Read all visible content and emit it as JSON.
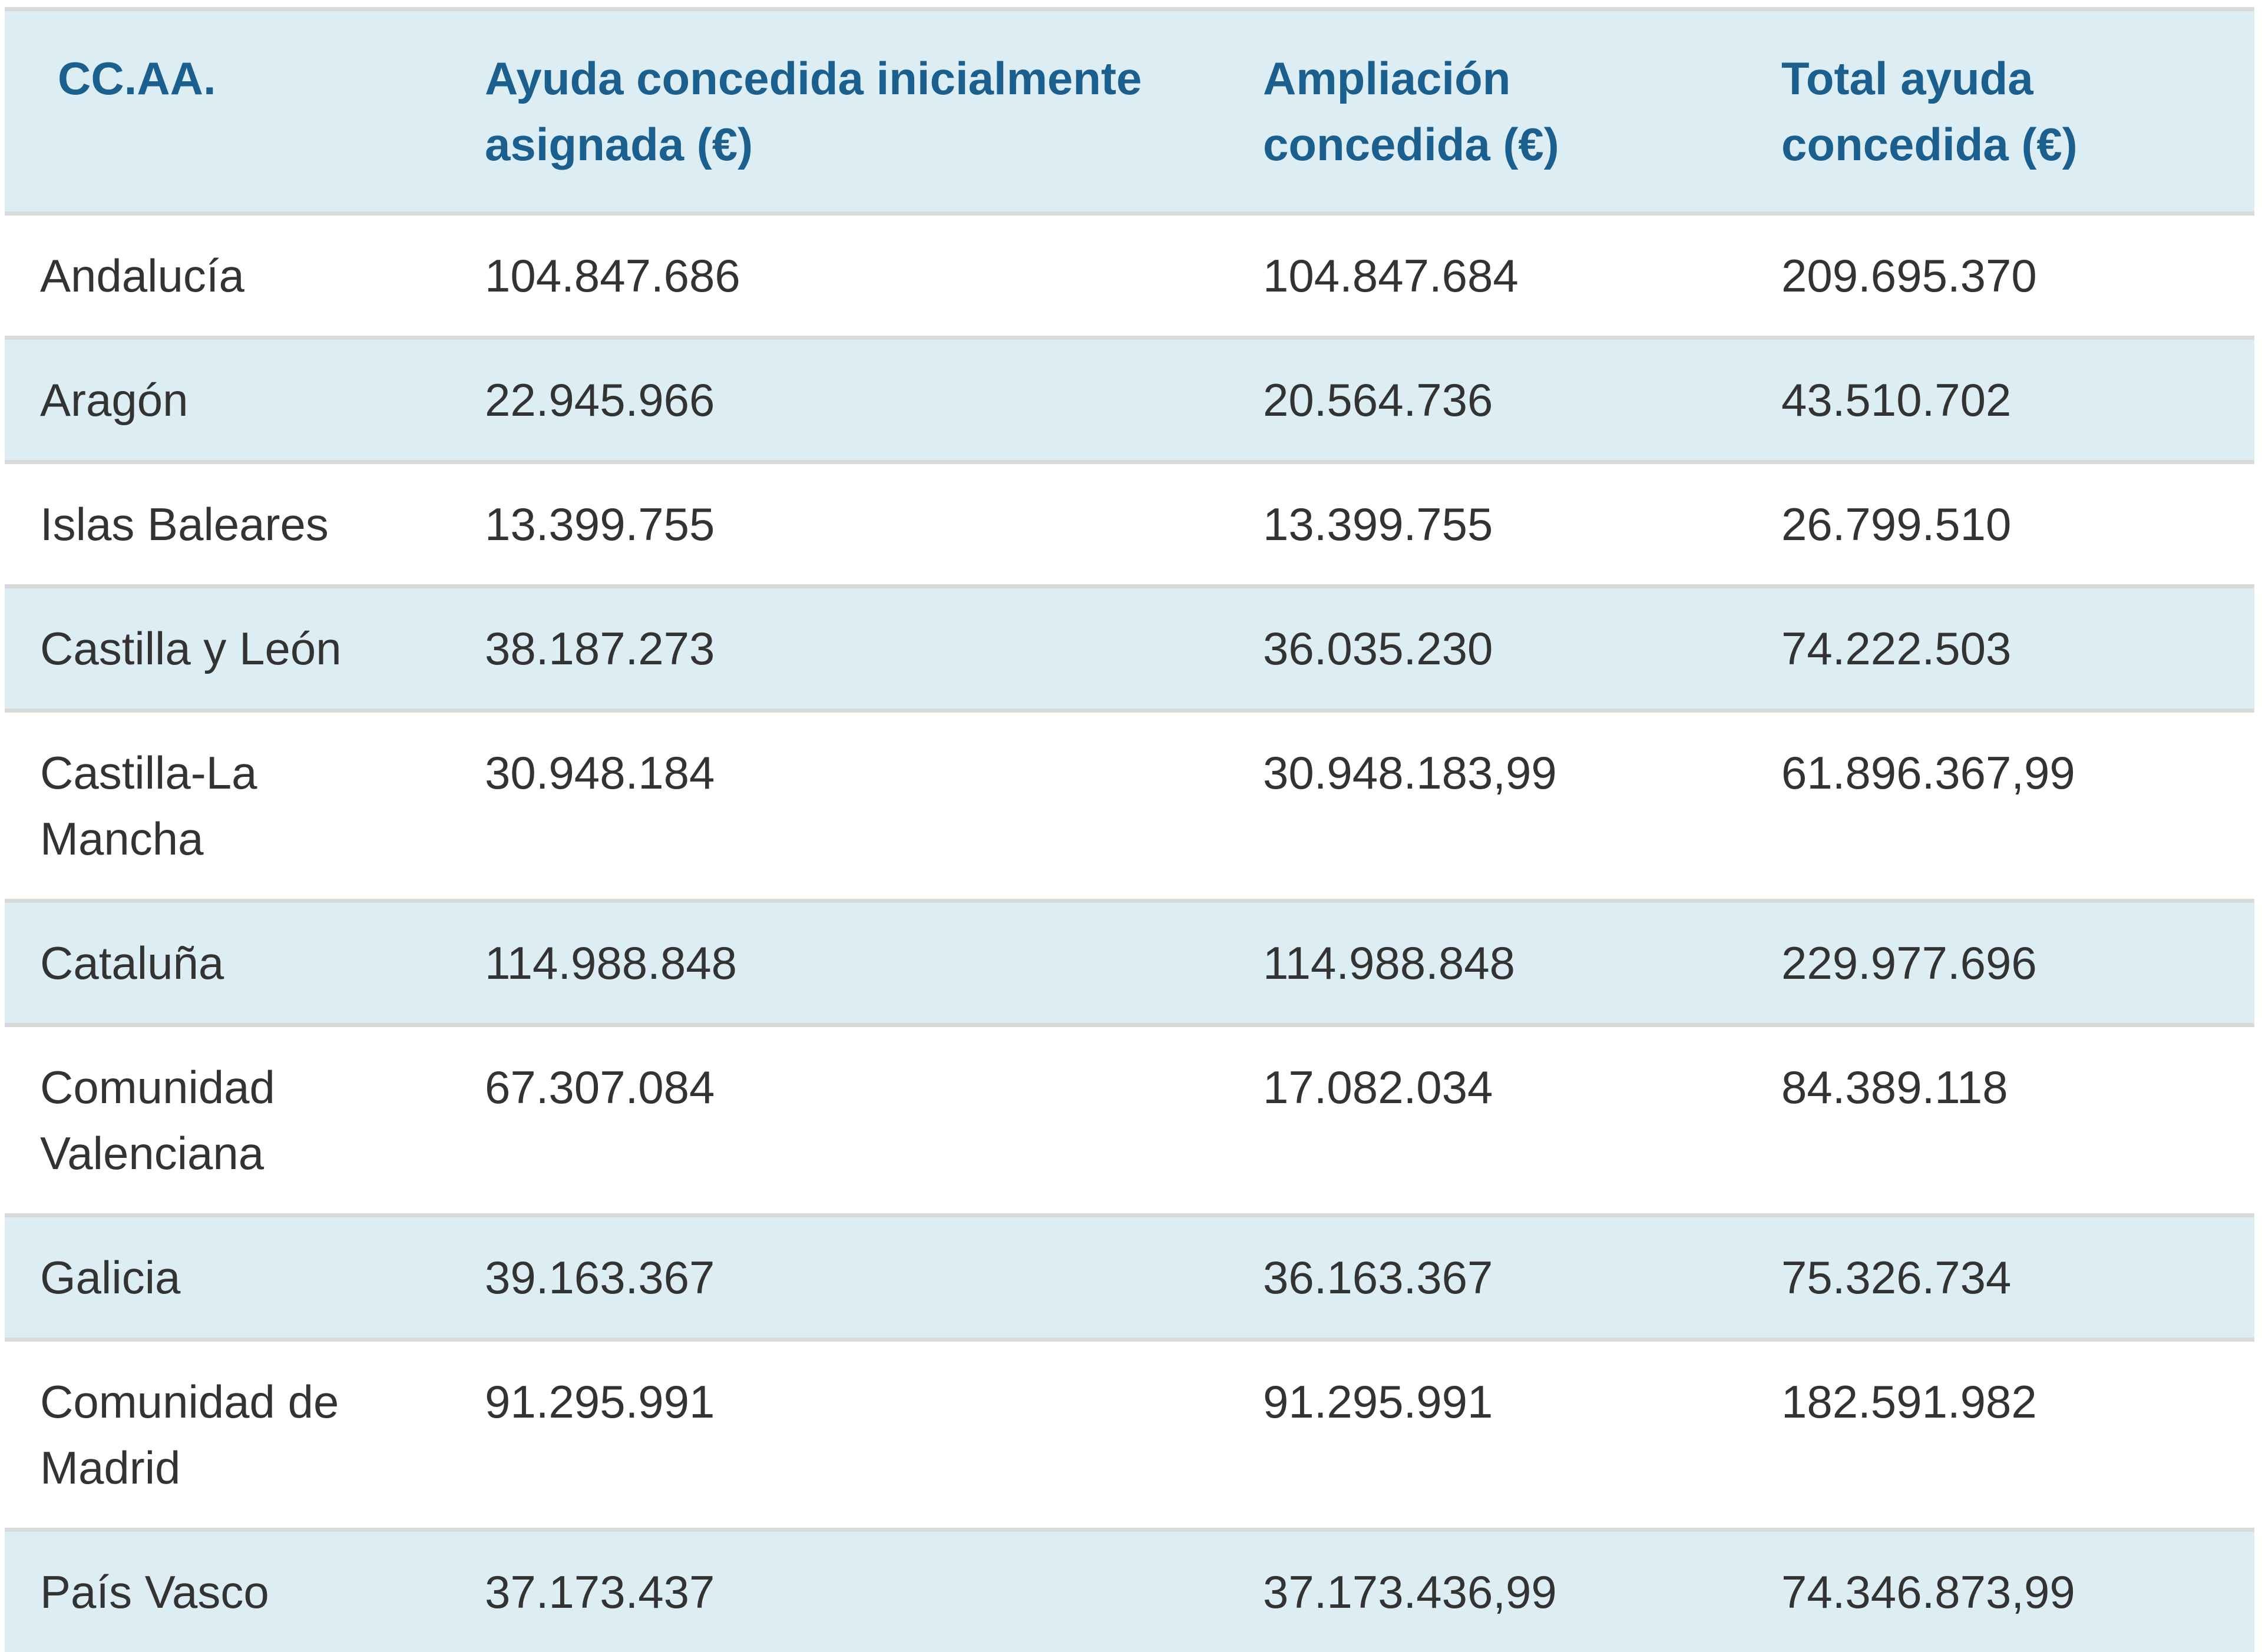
{
  "table": {
    "columns": [
      "CC.AA.",
      "Ayuda concedida inicialmente asignada (€)",
      "Ampliación concedida (€)",
      "Total ayuda concedida (€)"
    ],
    "rows": [
      {
        "ccaa": "Andalucía",
        "inicial": "104.847.686",
        "ampliacion": "104.847.684",
        "total": "209.695.370"
      },
      {
        "ccaa": "Aragón",
        "inicial": "22.945.966",
        "ampliacion": "20.564.736",
        "total": "43.510.702"
      },
      {
        "ccaa": "Islas Baleares",
        "inicial": "13.399.755",
        "ampliacion": "13.399.755",
        "total": "26.799.510"
      },
      {
        "ccaa": "Castilla y León",
        "inicial": "38.187.273",
        "ampliacion": "36.035.230",
        "total": "74.222.503"
      },
      {
        "ccaa": "Castilla-La Mancha",
        "inicial": "30.948.184",
        "ampliacion": "30.948.183,99",
        "total": "61.896.367,99"
      },
      {
        "ccaa": "Cataluña",
        "inicial": "114.988.848",
        "ampliacion": "114.988.848",
        "total": "229.977.696"
      },
      {
        "ccaa": "Comunidad Valenciana",
        "inicial": "67.307.084",
        "ampliacion": "17.082.034",
        "total": "84.389.118"
      },
      {
        "ccaa": "Galicia",
        "inicial": "39.163.367",
        "ampliacion": "36.163.367",
        "total": "75.326.734"
      },
      {
        "ccaa": "Comunidad de Madrid",
        "inicial": "91.295.991",
        "ampliacion": "91.295.991",
        "total": "182.591.982"
      },
      {
        "ccaa": "País Vasco",
        "inicial": "37.173.437",
        "ampliacion": "37.173.436,99",
        "total": "74.346.873,99"
      }
    ],
    "colors": {
      "header_text": "#1a5f8e",
      "alt_row_bg": "#ddedf4",
      "separator_line": "#d9d9d9",
      "body_text": "#333333",
      "page_bg": "#ffffff"
    }
  }
}
